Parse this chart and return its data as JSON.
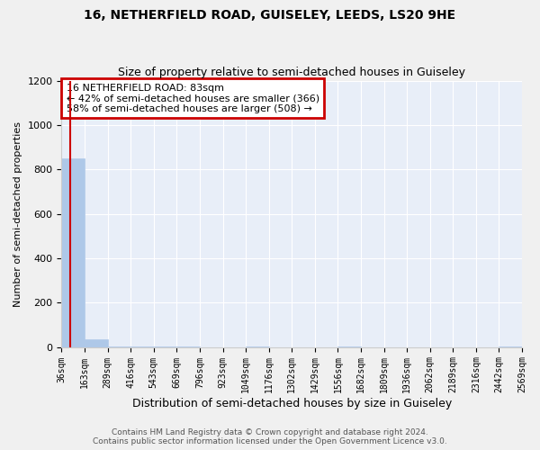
{
  "title": "16, NETHERFIELD ROAD, GUISELEY, LEEDS, LS20 9HE",
  "subtitle": "Size of property relative to semi-detached houses in Guiseley",
  "xlabel": "Distribution of semi-detached houses by size in Guiseley",
  "ylabel": "Number of semi-detached properties",
  "footer_line1": "Contains HM Land Registry data © Crown copyright and database right 2024.",
  "footer_line2": "Contains public sector information licensed under the Open Government Licence v3.0.",
  "bin_edges": [
    36,
    163,
    289,
    416,
    543,
    669,
    796,
    923,
    1049,
    1176,
    1302,
    1429,
    1556,
    1682,
    1809,
    1936,
    2062,
    2189,
    2316,
    2442,
    2569
  ],
  "bar_heights": [
    850,
    35,
    2,
    1,
    1,
    1,
    0,
    0,
    1,
    0,
    0,
    0,
    1,
    0,
    0,
    0,
    0,
    0,
    0,
    1
  ],
  "bar_color": "#aec8e8",
  "bar_edge_color": "#aec8e8",
  "property_value": 83,
  "red_line_color": "#cc0000",
  "annotation_text": "16 NETHERFIELD ROAD: 83sqm\n← 42% of semi-detached houses are smaller (366)\n58% of semi-detached houses are larger (508) →",
  "annotation_box_color": "#ffffff",
  "annotation_box_edge_color": "#cc0000",
  "ylim": [
    0,
    1200
  ],
  "background_color": "#e8eef8",
  "grid_color": "#ffffff",
  "title_fontsize": 10,
  "subtitle_fontsize": 9,
  "axis_label_fontsize": 8,
  "tick_fontsize": 7,
  "annotation_fontsize": 8,
  "footer_fontsize": 6.5
}
